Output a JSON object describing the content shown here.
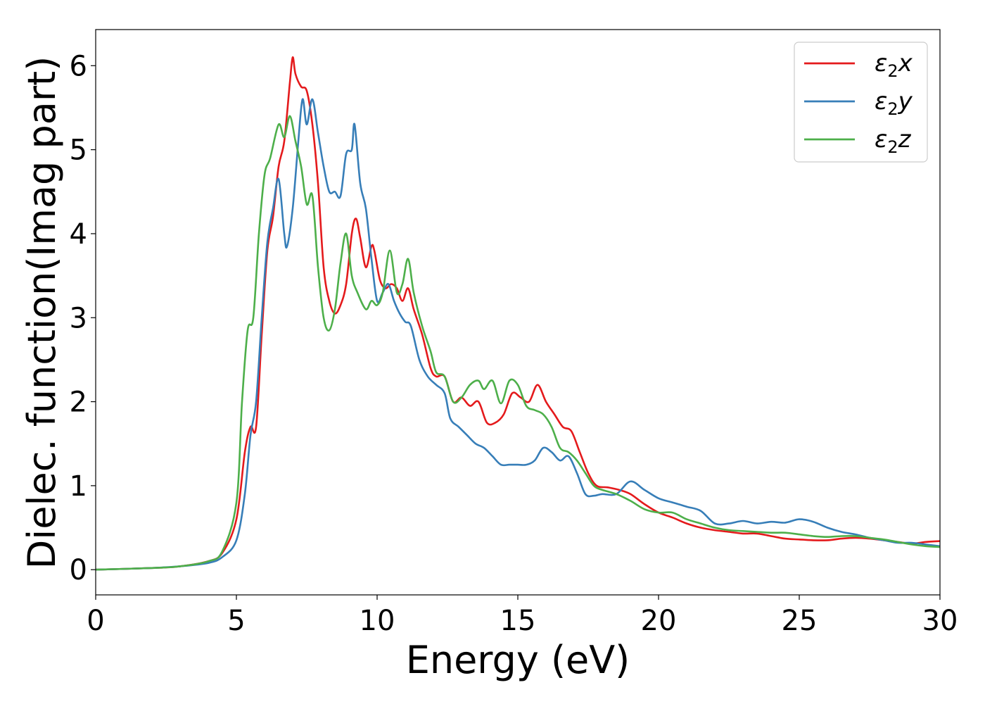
{
  "chart_data": {
    "type": "line",
    "xlabel": "Energy (eV)",
    "ylabel": "Dielec. function(Imag part)",
    "xlim": [
      0,
      30
    ],
    "ylim": [
      -0.3,
      6.43
    ],
    "xticks": [
      0,
      5,
      10,
      15,
      20,
      25,
      30
    ],
    "yticks": [
      0,
      1,
      2,
      3,
      4,
      5,
      6
    ],
    "grid": false,
    "legend_position": "top-right",
    "series": [
      {
        "name": "ε₂x",
        "legend": {
          "base": "ε",
          "sub": "2",
          "tail": "x"
        },
        "color": "#e41a1c",
        "points": [
          [
            0,
            0
          ],
          [
            2,
            0.02
          ],
          [
            3,
            0.04
          ],
          [
            4,
            0.1
          ],
          [
            4.5,
            0.2
          ],
          [
            5,
            0.6
          ],
          [
            5.3,
            1.4
          ],
          [
            5.5,
            1.7
          ],
          [
            5.7,
            1.7
          ],
          [
            5.9,
            2.8
          ],
          [
            6.1,
            3.8
          ],
          [
            6.3,
            4.2
          ],
          [
            6.5,
            4.8
          ],
          [
            6.7,
            5.1
          ],
          [
            6.9,
            5.8
          ],
          [
            7.0,
            6.1
          ],
          [
            7.1,
            5.9
          ],
          [
            7.3,
            5.75
          ],
          [
            7.5,
            5.7
          ],
          [
            7.7,
            5.3
          ],
          [
            7.9,
            4.6
          ],
          [
            8.1,
            3.6
          ],
          [
            8.3,
            3.2
          ],
          [
            8.5,
            3.05
          ],
          [
            8.7,
            3.15
          ],
          [
            8.9,
            3.4
          ],
          [
            9.1,
            4.0
          ],
          [
            9.25,
            4.18
          ],
          [
            9.4,
            3.95
          ],
          [
            9.6,
            3.6
          ],
          [
            9.8,
            3.85
          ],
          [
            9.9,
            3.8
          ],
          [
            10.1,
            3.45
          ],
          [
            10.3,
            3.35
          ],
          [
            10.5,
            3.4
          ],
          [
            10.7,
            3.35
          ],
          [
            10.9,
            3.2
          ],
          [
            11.1,
            3.35
          ],
          [
            11.3,
            3.1
          ],
          [
            11.6,
            2.8
          ],
          [
            11.9,
            2.4
          ],
          [
            12.1,
            2.3
          ],
          [
            12.4,
            2.3
          ],
          [
            12.7,
            2.0
          ],
          [
            13.0,
            2.05
          ],
          [
            13.3,
            1.95
          ],
          [
            13.6,
            2.0
          ],
          [
            13.9,
            1.75
          ],
          [
            14.2,
            1.75
          ],
          [
            14.5,
            1.85
          ],
          [
            14.8,
            2.1
          ],
          [
            15.1,
            2.05
          ],
          [
            15.4,
            2.0
          ],
          [
            15.7,
            2.2
          ],
          [
            16.0,
            2.0
          ],
          [
            16.3,
            1.85
          ],
          [
            16.6,
            1.7
          ],
          [
            16.9,
            1.65
          ],
          [
            17.2,
            1.4
          ],
          [
            17.5,
            1.15
          ],
          [
            17.8,
            1.0
          ],
          [
            18.2,
            0.98
          ],
          [
            18.6,
            0.95
          ],
          [
            19.0,
            0.9
          ],
          [
            19.5,
            0.78
          ],
          [
            20.0,
            0.68
          ],
          [
            20.5,
            0.62
          ],
          [
            21.0,
            0.55
          ],
          [
            21.5,
            0.5
          ],
          [
            22.0,
            0.47
          ],
          [
            22.5,
            0.45
          ],
          [
            23.0,
            0.43
          ],
          [
            23.5,
            0.43
          ],
          [
            24.0,
            0.4
          ],
          [
            24.5,
            0.37
          ],
          [
            25.0,
            0.36
          ],
          [
            25.5,
            0.35
          ],
          [
            26.0,
            0.35
          ],
          [
            26.5,
            0.37
          ],
          [
            27.0,
            0.38
          ],
          [
            27.5,
            0.37
          ],
          [
            28.0,
            0.35
          ],
          [
            28.5,
            0.33
          ],
          [
            29.0,
            0.31
          ],
          [
            29.5,
            0.33
          ],
          [
            30.0,
            0.34
          ]
        ]
      },
      {
        "name": "ε₂y",
        "legend": {
          "base": "ε",
          "sub": "2",
          "tail": "y"
        },
        "color": "#377eb8",
        "points": [
          [
            0,
            0
          ],
          [
            2,
            0.02
          ],
          [
            3,
            0.04
          ],
          [
            4,
            0.08
          ],
          [
            4.5,
            0.15
          ],
          [
            5,
            0.35
          ],
          [
            5.3,
            0.9
          ],
          [
            5.5,
            1.6
          ],
          [
            5.7,
            2.0
          ],
          [
            5.9,
            3.0
          ],
          [
            6.1,
            3.9
          ],
          [
            6.3,
            4.3
          ],
          [
            6.5,
            4.65
          ],
          [
            6.7,
            4.0
          ],
          [
            6.8,
            3.85
          ],
          [
            7.0,
            4.3
          ],
          [
            7.2,
            5.1
          ],
          [
            7.35,
            5.6
          ],
          [
            7.5,
            5.3
          ],
          [
            7.7,
            5.6
          ],
          [
            7.9,
            5.2
          ],
          [
            8.1,
            4.8
          ],
          [
            8.3,
            4.5
          ],
          [
            8.5,
            4.5
          ],
          [
            8.7,
            4.45
          ],
          [
            8.9,
            4.95
          ],
          [
            9.1,
            5.0
          ],
          [
            9.2,
            5.3
          ],
          [
            9.4,
            4.6
          ],
          [
            9.6,
            4.3
          ],
          [
            9.8,
            3.7
          ],
          [
            10.0,
            3.2
          ],
          [
            10.2,
            3.3
          ],
          [
            10.4,
            3.4
          ],
          [
            10.6,
            3.2
          ],
          [
            10.8,
            3.05
          ],
          [
            11.0,
            2.95
          ],
          [
            11.2,
            2.9
          ],
          [
            11.5,
            2.5
          ],
          [
            11.8,
            2.3
          ],
          [
            12.1,
            2.2
          ],
          [
            12.4,
            2.1
          ],
          [
            12.6,
            1.8
          ],
          [
            12.9,
            1.7
          ],
          [
            13.2,
            1.6
          ],
          [
            13.5,
            1.5
          ],
          [
            13.8,
            1.45
          ],
          [
            14.1,
            1.35
          ],
          [
            14.4,
            1.25
          ],
          [
            14.7,
            1.25
          ],
          [
            15.0,
            1.25
          ],
          [
            15.3,
            1.25
          ],
          [
            15.6,
            1.3
          ],
          [
            15.9,
            1.45
          ],
          [
            16.2,
            1.4
          ],
          [
            16.5,
            1.3
          ],
          [
            16.8,
            1.35
          ],
          [
            17.1,
            1.15
          ],
          [
            17.4,
            0.9
          ],
          [
            17.7,
            0.88
          ],
          [
            18.0,
            0.9
          ],
          [
            18.5,
            0.9
          ],
          [
            19.0,
            1.05
          ],
          [
            19.5,
            0.95
          ],
          [
            20.0,
            0.85
          ],
          [
            20.5,
            0.8
          ],
          [
            21.0,
            0.75
          ],
          [
            21.5,
            0.7
          ],
          [
            22.0,
            0.55
          ],
          [
            22.5,
            0.55
          ],
          [
            23.0,
            0.58
          ],
          [
            23.5,
            0.55
          ],
          [
            24.0,
            0.57
          ],
          [
            24.5,
            0.56
          ],
          [
            25.0,
            0.6
          ],
          [
            25.5,
            0.57
          ],
          [
            26.0,
            0.5
          ],
          [
            26.5,
            0.45
          ],
          [
            27.0,
            0.42
          ],
          [
            27.5,
            0.38
          ],
          [
            28.0,
            0.35
          ],
          [
            28.5,
            0.32
          ],
          [
            29.0,
            0.32
          ],
          [
            29.5,
            0.3
          ],
          [
            30.0,
            0.28
          ]
        ]
      },
      {
        "name": "ε₂z",
        "legend": {
          "base": "ε",
          "sub": "2",
          "tail": "z"
        },
        "color": "#4daf4a",
        "points": [
          [
            0,
            0
          ],
          [
            2,
            0.02
          ],
          [
            3,
            0.04
          ],
          [
            4,
            0.1
          ],
          [
            4.5,
            0.22
          ],
          [
            5,
            0.8
          ],
          [
            5.2,
            2.0
          ],
          [
            5.4,
            2.85
          ],
          [
            5.6,
            3.0
          ],
          [
            5.8,
            4.0
          ],
          [
            6.0,
            4.7
          ],
          [
            6.2,
            4.9
          ],
          [
            6.5,
            5.3
          ],
          [
            6.7,
            5.15
          ],
          [
            6.9,
            5.4
          ],
          [
            7.1,
            5.1
          ],
          [
            7.3,
            4.8
          ],
          [
            7.5,
            4.35
          ],
          [
            7.7,
            4.45
          ],
          [
            7.9,
            3.6
          ],
          [
            8.1,
            3.0
          ],
          [
            8.3,
            2.85
          ],
          [
            8.5,
            3.1
          ],
          [
            8.7,
            3.65
          ],
          [
            8.9,
            4.0
          ],
          [
            9.1,
            3.5
          ],
          [
            9.3,
            3.3
          ],
          [
            9.6,
            3.1
          ],
          [
            9.8,
            3.2
          ],
          [
            10.0,
            3.15
          ],
          [
            10.2,
            3.3
          ],
          [
            10.45,
            3.8
          ],
          [
            10.7,
            3.3
          ],
          [
            10.9,
            3.4
          ],
          [
            11.1,
            3.7
          ],
          [
            11.3,
            3.3
          ],
          [
            11.6,
            2.9
          ],
          [
            11.9,
            2.6
          ],
          [
            12.1,
            2.35
          ],
          [
            12.4,
            2.3
          ],
          [
            12.7,
            2.0
          ],
          [
            13.0,
            2.05
          ],
          [
            13.3,
            2.2
          ],
          [
            13.6,
            2.25
          ],
          [
            13.8,
            2.15
          ],
          [
            14.1,
            2.25
          ],
          [
            14.4,
            1.98
          ],
          [
            14.7,
            2.25
          ],
          [
            15.0,
            2.2
          ],
          [
            15.3,
            1.95
          ],
          [
            15.6,
            1.9
          ],
          [
            15.9,
            1.85
          ],
          [
            16.2,
            1.7
          ],
          [
            16.5,
            1.45
          ],
          [
            16.8,
            1.4
          ],
          [
            17.1,
            1.3
          ],
          [
            17.4,
            1.15
          ],
          [
            17.7,
            1.0
          ],
          [
            18.0,
            0.95
          ],
          [
            18.5,
            0.9
          ],
          [
            19.0,
            0.82
          ],
          [
            19.5,
            0.72
          ],
          [
            20.0,
            0.68
          ],
          [
            20.5,
            0.68
          ],
          [
            21.0,
            0.6
          ],
          [
            21.5,
            0.55
          ],
          [
            22.0,
            0.5
          ],
          [
            22.5,
            0.47
          ],
          [
            23.0,
            0.46
          ],
          [
            23.5,
            0.45
          ],
          [
            24.0,
            0.44
          ],
          [
            24.5,
            0.44
          ],
          [
            25.0,
            0.42
          ],
          [
            25.5,
            0.4
          ],
          [
            26.0,
            0.39
          ],
          [
            26.5,
            0.4
          ],
          [
            27.0,
            0.4
          ],
          [
            27.5,
            0.38
          ],
          [
            28.0,
            0.36
          ],
          [
            28.5,
            0.33
          ],
          [
            29.0,
            0.3
          ],
          [
            29.5,
            0.28
          ],
          [
            30.0,
            0.27
          ]
        ]
      }
    ]
  }
}
